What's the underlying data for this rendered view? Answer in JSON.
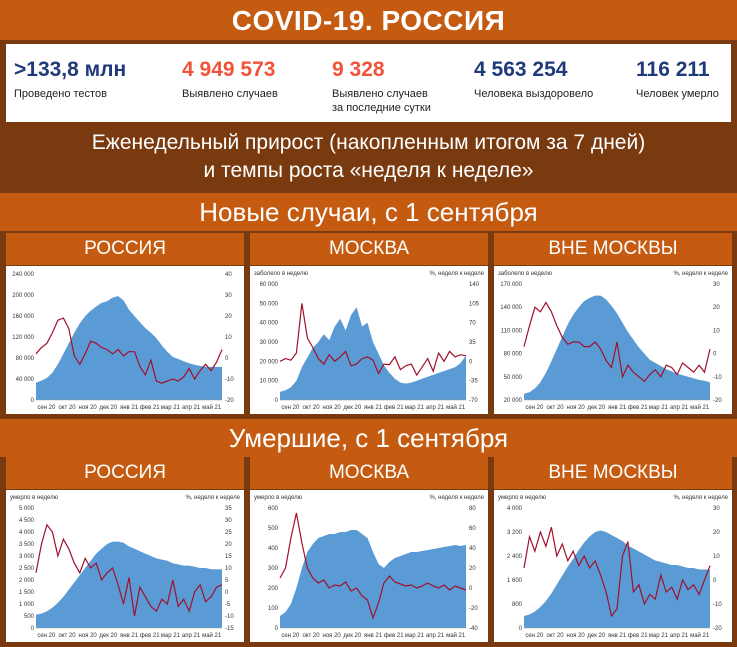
{
  "header": {
    "title": "COVID-19. РОССИЯ"
  },
  "stats": [
    {
      "value": ">133,8 млн",
      "label1": "Проведено тестов",
      "label2": "",
      "color": "#1f3a7a"
    },
    {
      "value": "4 949 573",
      "label1": "Выявлено случаев",
      "label2": "",
      "color": "#f0533a"
    },
    {
      "value": "9 328",
      "label1": "Выявлено случаев",
      "label2": "за последние сутки",
      "color": "#f0533a"
    },
    {
      "value": "4 563 254",
      "label1": "Человека выздоровело",
      "label2": "",
      "color": "#1f3a7a"
    },
    {
      "value": "116 211",
      "label1": "Человек умерло",
      "label2": "",
      "color": "#1f3a7a"
    }
  ],
  "subtitle": {
    "line1": "Еженедельный прирост (накопленным итогом за 7 дней)",
    "line2": "и темпы роста «неделя к неделе»"
  },
  "sections": {
    "cases": "Новые случаи, с 1 сентября",
    "deaths": "Умершие, с 1 сентября"
  },
  "regions": {
    "russia": "РОССИЯ",
    "moscow": "МОСКВА",
    "outside": "ВНЕ МОСКВЫ"
  },
  "colors": {
    "area": "#5b9bd5",
    "line": "#a0102a",
    "orange": "#c55a11",
    "brown": "#7a3a10"
  },
  "chart_data": [
    {
      "id": "cases-russia",
      "type": "area",
      "section": "Новые случаи",
      "region": "РОССИЯ",
      "x_ticks": [
        "сен 20",
        "окт 20",
        "ноя 20",
        "дек 20",
        "янв 21",
        "фев 21",
        "мар 21",
        "апр 21",
        "май 21"
      ],
      "left_caption": "",
      "right_caption": "",
      "ylim": [
        0,
        240000
      ],
      "y_ticks": [
        "0",
        "40 000",
        "80 000",
        "120 000",
        "160 000",
        "200 000",
        "240 000"
      ],
      "y2lim": [
        -20,
        40
      ],
      "y2_ticks": [
        "-20",
        "-10",
        "0",
        "10",
        "20",
        "30",
        "40"
      ],
      "series": [
        {
          "axis": "left",
          "values": [
            33000,
            37000,
            42000,
            52000,
            68000,
            88000,
            108000,
            128000,
            146000,
            160000,
            170000,
            178000,
            185000,
            188000,
            195000,
            198000,
            190000,
            172000,
            160000,
            148000,
            137000,
            128000,
            118000,
            104000,
            92000,
            82000,
            78000,
            74000,
            70000,
            67000,
            65000,
            63000,
            63000,
            63000,
            63000
          ]
        },
        {
          "axis": "right",
          "values": [
            2,
            5,
            7,
            12,
            18,
            19,
            14,
            1,
            -3,
            2,
            8,
            7,
            5,
            4,
            2,
            4,
            1,
            3,
            3,
            -4,
            -8,
            -1,
            -11,
            -12,
            -11,
            -10,
            -11,
            -9,
            -5,
            -10,
            -6,
            -3,
            -6,
            -2,
            4
          ]
        }
      ]
    },
    {
      "id": "cases-moscow",
      "type": "area",
      "section": "Новые случаи",
      "region": "МОСКВА",
      "x_ticks": [
        "сен 20",
        "окт 20",
        "ноя 20",
        "дек 20",
        "янв 21",
        "фев 21",
        "мар 21",
        "апр 21",
        "май 21"
      ],
      "left_caption": "заболело в неделю",
      "right_caption": "%, неделя к неделе",
      "ylim": [
        0,
        60000
      ],
      "y_ticks": [
        "0",
        "10 000",
        "20 000",
        "30 000",
        "40 000",
        "50 000",
        "60 000"
      ],
      "y2lim": [
        -70,
        140
      ],
      "y2_ticks": [
        "-70",
        "-35",
        "0",
        "35",
        "70",
        "105",
        "140"
      ],
      "series": [
        {
          "axis": "left",
          "values": [
            4200,
            5000,
            6500,
            10000,
            17000,
            22000,
            27000,
            30000,
            34000,
            31000,
            38000,
            42000,
            36000,
            44000,
            48000,
            38000,
            40000,
            30000,
            24000,
            18000,
            14000,
            11000,
            9000,
            8500,
            9000,
            10000,
            11000,
            12000,
            13000,
            14000,
            15000,
            16000,
            17000,
            19000,
            23000
          ]
        },
        {
          "axis": "right",
          "values": [
            0,
            5,
            2,
            15,
            105,
            42,
            25,
            5,
            -5,
            12,
            0,
            8,
            18,
            -8,
            -5,
            5,
            8,
            2,
            -22,
            -5,
            -6,
            8,
            -15,
            -8,
            -5,
            -25,
            -10,
            5,
            -18,
            15,
            0,
            18,
            8,
            12,
            10
          ]
        }
      ]
    },
    {
      "id": "cases-outside",
      "type": "area",
      "section": "Новые случаи",
      "region": "ВНЕ МОСКВЫ",
      "x_ticks": [
        "сен 20",
        "окт 20",
        "ноя 20",
        "дек 20",
        "янв 21",
        "фев 21",
        "мар 21",
        "апр 21",
        "май 21"
      ],
      "left_caption": "заболело в неделю",
      "right_caption": "%, неделя к неделе",
      "ylim": [
        20000,
        170000
      ],
      "y_ticks": [
        "20 000",
        "50 000",
        "80 000",
        "110 000",
        "140 000",
        "170 000"
      ],
      "y2lim": [
        -20,
        30
      ],
      "y2_ticks": [
        "-20",
        "-10",
        "0",
        "10",
        "20",
        "30"
      ],
      "series": [
        {
          "axis": "left",
          "values": [
            28000,
            30000,
            35000,
            43000,
            55000,
            70000,
            86000,
            102000,
            118000,
            130000,
            140000,
            148000,
            152000,
            155000,
            155000,
            150000,
            142000,
            132000,
            120000,
            108000,
            98000,
            88000,
            80000,
            72000,
            68000,
            64000,
            60000,
            57000,
            54000,
            52000,
            50000,
            48000,
            46000,
            45000,
            43000
          ]
        },
        {
          "axis": "right",
          "values": [
            3,
            12,
            20,
            18,
            22,
            18,
            12,
            7,
            4,
            5,
            5,
            3,
            3,
            5,
            2,
            -3,
            -6,
            5,
            -10,
            -5,
            -8,
            -10,
            -12,
            -9,
            -7,
            -10,
            -5,
            -6,
            -9,
            -4,
            -6,
            -8,
            -5,
            -8,
            2
          ]
        }
      ]
    },
    {
      "id": "deaths-russia",
      "type": "area",
      "section": "Умершие",
      "region": "РОССИЯ",
      "x_ticks": [
        "сен 20",
        "окт 20",
        "ноя 20",
        "дек 20",
        "янв 21",
        "фев 21",
        "мар 21",
        "апр 21",
        "май 21"
      ],
      "left_caption": "умерло в неделю",
      "right_caption": "%, неделя к неделе",
      "ylim": [
        0,
        5000
      ],
      "y_ticks": [
        "0",
        "500",
        "1 000",
        "1 500",
        "2 000",
        "2 500",
        "3 000",
        "3 500",
        "4 000",
        "4 500",
        "5 000"
      ],
      "y2lim": [
        -15,
        35
      ],
      "y2_ticks": [
        "-15",
        "-10",
        "-5",
        "0",
        "5",
        "10",
        "15",
        "20",
        "25",
        "30",
        "35"
      ],
      "series": [
        {
          "axis": "left",
          "values": [
            550,
            600,
            700,
            850,
            1050,
            1300,
            1600,
            1900,
            2200,
            2500,
            2800,
            3100,
            3300,
            3500,
            3600,
            3600,
            3550,
            3400,
            3300,
            3200,
            3100,
            3000,
            2900,
            2850,
            2800,
            2700,
            2650,
            2600,
            2600,
            2550,
            2500,
            2500,
            2450,
            2450,
            2450
          ]
        },
        {
          "axis": "right",
          "values": [
            8,
            20,
            28,
            25,
            15,
            22,
            18,
            12,
            8,
            14,
            10,
            12,
            5,
            8,
            10,
            3,
            -5,
            6,
            -10,
            2,
            -2,
            -6,
            -8,
            -3,
            -5,
            5,
            -6,
            -3,
            -8,
            0,
            3,
            -4,
            -2,
            2,
            3
          ]
        }
      ]
    },
    {
      "id": "deaths-moscow",
      "type": "area",
      "section": "Умершие",
      "region": "МОСКВА",
      "x_ticks": [
        "сен 20",
        "окт 20",
        "ноя 20",
        "дек 20",
        "янв 21",
        "фев 21",
        "мар 21",
        "апр 21",
        "май 21"
      ],
      "left_caption": "умерло в неделю",
      "right_caption": "%, неделя к неделе",
      "ylim": [
        0,
        600
      ],
      "y_ticks": [
        "0",
        "100",
        "200",
        "300",
        "400",
        "500",
        "600"
      ],
      "y2lim": [
        -40,
        80
      ],
      "y2_ticks": [
        "-40",
        "-20",
        "0",
        "20",
        "40",
        "60",
        "80"
      ],
      "series": [
        {
          "axis": "left",
          "values": [
            60,
            80,
            120,
            200,
            300,
            380,
            420,
            450,
            460,
            470,
            470,
            480,
            480,
            490,
            490,
            470,
            450,
            380,
            320,
            300,
            330,
            350,
            360,
            370,
            380,
            380,
            385,
            390,
            395,
            400,
            405,
            410,
            415,
            410,
            415
          ]
        },
        {
          "axis": "right",
          "values": [
            10,
            20,
            50,
            75,
            45,
            20,
            10,
            5,
            8,
            0,
            3,
            2,
            6,
            -3,
            0,
            -8,
            -12,
            -30,
            -15,
            5,
            12,
            6,
            4,
            2,
            3,
            0,
            2,
            5,
            2,
            0,
            3,
            -2,
            2,
            0,
            -2
          ]
        }
      ]
    },
    {
      "id": "deaths-outside",
      "type": "area",
      "section": "Умершие",
      "region": "ВНЕ МОСКВЫ",
      "x_ticks": [
        "сен 20",
        "окт 20",
        "ноя 20",
        "дек 20",
        "янв 21",
        "фев 21",
        "мар 21",
        "апр 21",
        "май 21"
      ],
      "left_caption": "умерло в неделю",
      "right_caption": "%, неделя к неделе",
      "ylim": [
        0,
        4000
      ],
      "y_ticks": [
        "0",
        "800",
        "1 600",
        "2 400",
        "3 200",
        "4 000"
      ],
      "y2lim": [
        -20,
        30
      ],
      "y2_ticks": [
        "-20",
        "-10",
        "0",
        "10",
        "20",
        "30"
      ],
      "series": [
        {
          "axis": "left",
          "values": [
            400,
            450,
            550,
            700,
            900,
            1150,
            1450,
            1750,
            2050,
            2300,
            2600,
            2850,
            3050,
            3200,
            3250,
            3200,
            3100,
            3000,
            2900,
            2750,
            2650,
            2550,
            2450,
            2350,
            2250,
            2200,
            2150,
            2100,
            2100,
            2050,
            2000,
            2000,
            1950,
            1950,
            1950
          ]
        },
        {
          "axis": "right",
          "values": [
            5,
            18,
            12,
            20,
            14,
            22,
            10,
            15,
            8,
            12,
            6,
            10,
            5,
            8,
            2,
            -5,
            -15,
            -12,
            10,
            16,
            -5,
            -2,
            -10,
            -6,
            -8,
            2,
            -5,
            -3,
            -8,
            0,
            -4,
            -2,
            -6,
            0,
            6
          ]
        }
      ]
    }
  ]
}
